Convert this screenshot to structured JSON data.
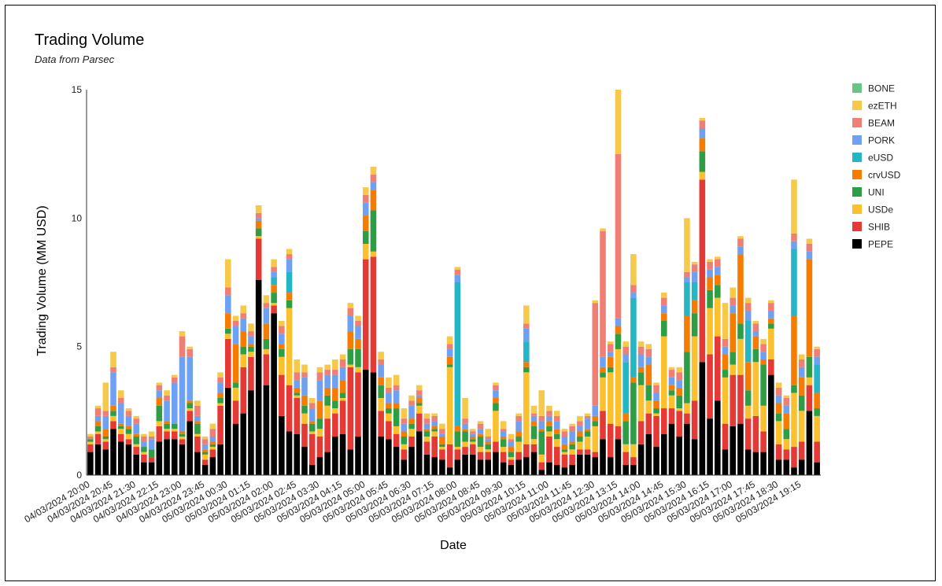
{
  "chart_data": {
    "type": "bar",
    "stacked": true,
    "title": "Trading Volume",
    "subtitle": "Data from Parsec",
    "xlabel": "Date",
    "ylabel": "Trading Volume (MM USD)",
    "ylim": [
      0,
      15
    ],
    "yticks": [
      0,
      5,
      10,
      15
    ],
    "grid": false,
    "legend_position": "right",
    "x_tick_labels": [
      "04/03/2024 20:00",
      "04/03/2024 20:45",
      "04/03/2024 21:30",
      "04/03/2024 22:15",
      "04/03/2024 23:00",
      "04/03/2024 23:45",
      "05/03/2024 00:30",
      "05/03/2024 01:15",
      "05/03/2024 02:00",
      "05/03/2024 02:45",
      "05/03/2024 03:30",
      "05/03/2024 04:15",
      "05/03/2024 05:00",
      "05/03/2024 05:45",
      "05/03/2024 06:30",
      "05/03/2024 07:15",
      "05/03/2024 08:00",
      "05/03/2024 08:45",
      "05/03/2024 09:30",
      "05/03/2024 10:15",
      "05/03/2024 11:00",
      "05/03/2024 11:45",
      "05/03/2024 12:30",
      "05/03/2024 13:15",
      "05/03/2024 14:00",
      "05/03/2024 14:45",
      "05/03/2024 15:30",
      "05/03/2024 16:15",
      "05/03/2024 17:00",
      "05/03/2024 17:45",
      "05/03/2024 18:30",
      "05/03/2024 19:15"
    ],
    "categories": [
      "04/03/2024 20:00",
      "04/03/2024 20:15",
      "04/03/2024 20:30",
      "04/03/2024 20:45",
      "04/03/2024 21:00",
      "04/03/2024 21:15",
      "04/03/2024 21:30",
      "04/03/2024 21:45",
      "04/03/2024 22:00",
      "04/03/2024 22:15",
      "04/03/2024 22:30",
      "04/03/2024 22:45",
      "04/03/2024 23:00",
      "04/03/2024 23:15",
      "04/03/2024 23:30",
      "04/03/2024 23:45",
      "05/03/2024 00:00",
      "05/03/2024 00:15",
      "05/03/2024 00:30",
      "05/03/2024 00:45",
      "05/03/2024 01:00",
      "05/03/2024 01:15",
      "05/03/2024 01:30",
      "05/03/2024 01:45",
      "05/03/2024 02:00",
      "05/03/2024 02:15",
      "05/03/2024 02:30",
      "05/03/2024 02:45",
      "05/03/2024 03:00",
      "05/03/2024 03:15",
      "05/03/2024 03:30",
      "05/03/2024 03:45",
      "05/03/2024 04:00",
      "05/03/2024 04:15",
      "05/03/2024 04:30",
      "05/03/2024 04:45",
      "05/03/2024 05:00",
      "05/03/2024 05:15",
      "05/03/2024 05:30",
      "05/03/2024 05:45",
      "05/03/2024 06:00",
      "05/03/2024 06:15",
      "05/03/2024 06:30",
      "05/03/2024 06:45",
      "05/03/2024 07:00",
      "05/03/2024 07:15",
      "05/03/2024 07:30",
      "05/03/2024 07:45",
      "05/03/2024 08:00",
      "05/03/2024 08:15",
      "05/03/2024 08:30",
      "05/03/2024 08:45",
      "05/03/2024 09:00",
      "05/03/2024 09:15",
      "05/03/2024 09:30",
      "05/03/2024 09:45",
      "05/03/2024 10:00",
      "05/03/2024 10:15",
      "05/03/2024 10:30",
      "05/03/2024 10:45",
      "05/03/2024 11:00",
      "05/03/2024 11:15",
      "05/03/2024 11:30",
      "05/03/2024 11:45",
      "05/03/2024 12:00",
      "05/03/2024 12:15",
      "05/03/2024 12:30",
      "05/03/2024 12:45",
      "05/03/2024 13:00",
      "05/03/2024 13:15",
      "05/03/2024 13:30",
      "05/03/2024 13:45",
      "05/03/2024 14:00",
      "05/03/2024 14:15",
      "05/03/2024 14:30",
      "05/03/2024 14:45",
      "05/03/2024 15:00",
      "05/03/2024 15:15",
      "05/03/2024 15:30",
      "05/03/2024 15:45",
      "05/03/2024 16:00",
      "05/03/2024 16:15",
      "05/03/2024 16:30",
      "05/03/2024 16:45",
      "05/03/2024 17:00",
      "05/03/2024 17:15",
      "05/03/2024 17:30",
      "05/03/2024 17:45",
      "05/03/2024 18:00",
      "05/03/2024 18:15",
      "05/03/2024 18:30",
      "05/03/2024 18:45",
      "05/03/2024 19:00",
      "05/03/2024 19:15",
      "05/03/2024 19:30",
      "05/03/2024 19:45"
    ],
    "series": [
      {
        "name": "PEPE",
        "color": "#000000",
        "values": [
          0.9,
          1.2,
          1.0,
          1.8,
          1.3,
          1.2,
          0.8,
          0.5,
          0.5,
          1.3,
          1.4,
          1.4,
          1.2,
          2.1,
          0.9,
          0.4,
          0.7,
          1.2,
          3.4,
          2.0,
          2.4,
          3.3,
          7.6,
          3.5,
          6.3,
          2.3,
          1.7,
          1.6,
          1.1,
          0.4,
          0.7,
          0.9,
          1.5,
          1.6,
          1.0,
          1.5,
          4.1,
          4.0,
          1.5,
          1.4,
          1.1,
          0.6,
          1.1,
          1.7,
          0.8,
          0.7,
          0.6,
          0.3,
          0.6,
          0.8,
          0.8,
          0.6,
          0.6,
          0.9,
          0.5,
          0.4,
          0.6,
          0.7,
          0.9,
          0.2,
          0.5,
          0.4,
          0.3,
          0.4,
          0.8,
          0.8,
          0.7,
          1.4,
          0.7,
          1.4,
          0.4,
          0.4,
          1.2,
          1.6,
          1.1,
          1.6,
          2.0,
          1.5,
          2.0,
          1.4,
          4.4,
          2.2,
          2.9,
          1.0,
          1.9,
          2.0,
          1.0,
          0.9,
          0.9,
          3.9,
          0.6,
          0.6,
          0.3,
          0.6,
          2.5,
          0.5
        ]
      },
      {
        "name": "SHIB",
        "color": "#e53935",
        "values": [
          0.3,
          0.4,
          0.3,
          0.3,
          0.3,
          0.2,
          0.3,
          0.3,
          0.2,
          0.6,
          0.3,
          0.3,
          0.2,
          0.4,
          0.6,
          0.2,
          0.3,
          1.5,
          1.9,
          0.9,
          1.8,
          1.3,
          1.6,
          1.2,
          0.3,
          1.6,
          1.8,
          1.4,
          0.9,
          1.2,
          0.8,
          1.3,
          0.9,
          1.3,
          3.2,
          2.5,
          4.3,
          4.5,
          1.0,
          0.7,
          0.5,
          0.4,
          0.4,
          0.7,
          0.5,
          0.8,
          0.4,
          0.9,
          0.4,
          0.3,
          0.4,
          0.3,
          0.3,
          0.4,
          0.4,
          0.2,
          0.3,
          0.5,
          0.3,
          0.3,
          1.0,
          0.7,
          0.5,
          0.4,
          0.2,
          0.2,
          0.2,
          1.1,
          1.3,
          0.5,
          0.5,
          0.3,
          0.9,
          0.8,
          1.2,
          1.0,
          0.6,
          1.0,
          0.4,
          1.5,
          7.1,
          2.5,
          2.5,
          1.0,
          2.0,
          1.9,
          1.2,
          1.4,
          0.8,
          0.6,
          0.6,
          0.4,
          0.8,
          0.7,
          1.0,
          0.8
        ]
      },
      {
        "name": "USDe",
        "color": "#fbc02d",
        "values": [
          0.1,
          0.1,
          0.1,
          0.2,
          0.2,
          0.2,
          0.1,
          0.1,
          0.0,
          0.2,
          0.1,
          0.1,
          0.1,
          0.1,
          0.1,
          0.2,
          0.1,
          0.1,
          0.2,
          0.5,
          0.5,
          0.2,
          0.1,
          0.2,
          0.1,
          0.7,
          3.0,
          0.1,
          0.4,
          0.1,
          0.3,
          0.5,
          0.2,
          0.1,
          0.1,
          0.2,
          0.6,
          0.2,
          0.5,
          0.3,
          0.3,
          0.2,
          0.3,
          0.3,
          0.2,
          0.2,
          0.1,
          3.0,
          0.1,
          0.2,
          0.1,
          0.2,
          0.1,
          1.2,
          0.2,
          0.1,
          0.4,
          2.8,
          0.2,
          0.3,
          0.2,
          0.3,
          0.1,
          0.2,
          0.3,
          0.5,
          1.0,
          1.3,
          2.0,
          3.0,
          0.3,
          0.5,
          1.4,
          0.5,
          0.1,
          2.8,
          0.5,
          0.1,
          0.4,
          2.5,
          0.3,
          1.8,
          1.5,
          1.8,
          0.4,
          1.4,
          0.5,
          2.1,
          1.0,
          1.2,
          0.9,
          0.4,
          2.1,
          1.2,
          0.3,
          1.0
        ]
      },
      {
        "name": "UNI",
        "color": "#2e9e44",
        "values": [
          0.1,
          0.2,
          0.1,
          0.2,
          0.1,
          0.2,
          0.3,
          0.2,
          0.3,
          0.6,
          0.2,
          0.2,
          0.1,
          0.2,
          0.4,
          0.1,
          0.1,
          0.2,
          0.2,
          0.2,
          0.3,
          0.2,
          0.3,
          0.4,
          0.4,
          0.3,
          0.3,
          0.1,
          0.3,
          0.3,
          0.4,
          0.4,
          0.3,
          0.2,
          0.6,
          0.7,
          0.5,
          1.6,
          0.5,
          0.2,
          0.7,
          0.3,
          0.2,
          0.1,
          0.2,
          0.1,
          0.1,
          0.1,
          0.6,
          0.4,
          0.1,
          0.4,
          0.2,
          0.3,
          0.3,
          0.2,
          0.2,
          0.2,
          0.5,
          0.9,
          0.2,
          0.2,
          0.1,
          0.2,
          0.2,
          0.2,
          0.2,
          0.2,
          0.2,
          0.6,
          0.9,
          2.4,
          0.5,
          0.6,
          0.2,
          0.6,
          0.2,
          0.5,
          2.0,
          0.9,
          0.8,
          0.7,
          0.5,
          0.3,
          0.5,
          0.6,
          0.6,
          0.5,
          1.6,
          0.2,
          0.3,
          0.4,
          0.3,
          0.6,
          0.8,
          0.3
        ]
      },
      {
        "name": "crvUSD",
        "color": "#f57c00",
        "values": [
          0.0,
          0.2,
          0.3,
          0.2,
          0.1,
          0.1,
          0.1,
          0.0,
          0.0,
          0.3,
          0.1,
          0.0,
          0.1,
          0.1,
          0.1,
          0.1,
          0.1,
          0.2,
          0.6,
          1.5,
          0.6,
          0.1,
          0.3,
          0.6,
          0.3,
          0.2,
          0.3,
          0.2,
          0.4,
          0.1,
          0.7,
          0.3,
          0.5,
          0.5,
          0.7,
          0.4,
          0.6,
          0.8,
          0.3,
          0.2,
          0.2,
          0.2,
          0.2,
          0.2,
          0.1,
          0.1,
          0.3,
          0.3,
          0.2,
          0.1,
          0.1,
          0.1,
          0.1,
          0.2,
          0.1,
          0.2,
          0.2,
          0.2,
          0.2,
          0.1,
          0.2,
          0.2,
          0.2,
          0.1,
          0.2,
          0.1,
          0.2,
          0.2,
          0.4,
          0.3,
          0.3,
          0.2,
          0.2,
          0.8,
          0.3,
          0.3,
          0.2,
          0.3,
          1.4,
          0.5,
          0.5,
          0.5,
          0.4,
          0.6,
          1.5,
          2.7,
          1.1,
          0.5,
          0.2,
          0.2,
          0.4,
          0.6,
          2.7,
          0.7,
          3.8,
          0.6
        ]
      },
      {
        "name": "eUSD",
        "color": "#26b5c4",
        "values": [
          0.0,
          0.0,
          0.0,
          0.0,
          0.0,
          0.0,
          0.0,
          0.0,
          0.0,
          0.0,
          0.0,
          0.0,
          0.0,
          0.0,
          0.0,
          0.0,
          0.0,
          0.0,
          0.0,
          0.0,
          0.0,
          0.0,
          0.0,
          0.0,
          0.3,
          0.0,
          0.8,
          0.0,
          0.0,
          0.0,
          0.0,
          0.0,
          0.0,
          0.0,
          0.0,
          0.0,
          0.0,
          0.0,
          0.0,
          0.0,
          0.0,
          0.0,
          0.0,
          0.0,
          0.0,
          0.0,
          0.0,
          0.0,
          5.6,
          0.0,
          0.0,
          0.0,
          0.0,
          0.0,
          0.0,
          0.0,
          0.0,
          0.8,
          0.0,
          0.0,
          0.0,
          0.0,
          0.0,
          0.0,
          0.0,
          0.0,
          0.0,
          0.0,
          0.0,
          0.0,
          2.0,
          3.1,
          0.0,
          0.0,
          0.0,
          0.0,
          0.0,
          0.0,
          1.3,
          0.7,
          0.0,
          0.0,
          0.0,
          0.0,
          0.0,
          0.0,
          1.6,
          0.0,
          0.0,
          0.0,
          0.0,
          0.0,
          2.6,
          0.0,
          0.0,
          1.1
        ]
      },
      {
        "name": "PORK",
        "color": "#6fa1f2",
        "values": [
          0.0,
          0.2,
          0.5,
          1.3,
          0.8,
          0.4,
          0.4,
          0.2,
          0.4,
          0.3,
          0.8,
          1.6,
          2.9,
          1.7,
          0.2,
          0.2,
          0.2,
          0.4,
          0.7,
          0.7,
          0.5,
          0.3,
          0.1,
          0.6,
          0.2,
          0.4,
          0.5,
          0.3,
          0.7,
          0.5,
          0.8,
          0.5,
          0.5,
          0.5,
          0.6,
          0.5,
          0.5,
          0.3,
          0.5,
          0.4,
          0.5,
          0.3,
          0.5,
          0.1,
          0.2,
          0.2,
          0.1,
          0.3,
          0.3,
          0.2,
          0.1,
          0.2,
          0.1,
          0.3,
          0.2,
          0.2,
          0.4,
          0.5,
          0.2,
          0.3,
          0.2,
          0.3,
          0.3,
          0.4,
          0.2,
          0.4,
          0.4,
          0.4,
          0.2,
          0.3,
          0.3,
          0.2,
          0.5,
          0.3,
          0.3,
          0.3,
          0.3,
          0.3,
          0.2,
          0.4,
          0.4,
          0.3,
          0.3,
          0.3,
          0.3,
          0.3,
          0.4,
          0.2,
          0.3,
          0.3,
          0.3,
          0.3,
          0.3,
          0.4,
          0.3,
          0.3
        ]
      },
      {
        "name": "BEAM",
        "color": "#ef7e74",
        "values": [
          0.1,
          0.3,
          0.2,
          0.2,
          0.2,
          0.2,
          0.2,
          0.2,
          0.1,
          0.2,
          0.2,
          0.2,
          0.8,
          0.3,
          0.4,
          0.2,
          0.3,
          0.2,
          0.3,
          0.2,
          0.2,
          0.2,
          0.2,
          0.2,
          0.2,
          0.3,
          0.2,
          0.3,
          0.2,
          0.2,
          0.3,
          0.2,
          0.2,
          0.3,
          0.3,
          0.2,
          0.3,
          0.3,
          0.2,
          0.2,
          0.2,
          0.2,
          0.2,
          0.2,
          0.2,
          0.2,
          0.2,
          0.2,
          0.2,
          0.2,
          0.1,
          0.2,
          0.1,
          0.2,
          0.1,
          0.1,
          0.2,
          0.2,
          0.1,
          0.2,
          0.2,
          0.2,
          0.2,
          0.2,
          0.2,
          0.1,
          4.0,
          4.9,
          0.3,
          6.4,
          0.3,
          0.3,
          0.3,
          0.3,
          0.3,
          0.3,
          0.3,
          0.3,
          0.2,
          0.3,
          0.3,
          0.3,
          0.3,
          0.3,
          0.3,
          0.3,
          0.3,
          0.3,
          0.3,
          0.3,
          0.3,
          0.3,
          0.3,
          0.3,
          0.3,
          0.3
        ]
      },
      {
        "name": "ezETH",
        "color": "#f6c94a",
        "values": [
          0.1,
          0.1,
          1.1,
          0.6,
          0.3,
          0.1,
          0.1,
          0.1,
          0.2,
          0.1,
          0.2,
          0.1,
          0.2,
          0.1,
          0.2,
          0.1,
          0.2,
          0.2,
          1.1,
          0.2,
          0.3,
          0.3,
          0.3,
          0.3,
          0.3,
          0.2,
          0.2,
          0.5,
          0.3,
          0.2,
          0.2,
          0.2,
          0.4,
          0.2,
          0.2,
          0.2,
          0.3,
          0.3,
          0.3,
          0.4,
          0.4,
          0.4,
          0.2,
          0.2,
          0.2,
          0.1,
          0.2,
          0.3,
          0.1,
          0.8,
          0.1,
          0.1,
          0.3,
          0.1,
          0.3,
          0.2,
          0.1,
          0.7,
          0.3,
          1.0,
          0.2,
          0.2,
          0.1,
          0.1,
          0.2,
          0.1,
          0.1,
          0.1,
          0.1,
          2.5,
          0.2,
          1.2,
          0.2,
          0.2,
          0.1,
          0.2,
          0.1,
          0.2,
          2.1,
          0.1,
          0.1,
          0.1,
          0.1,
          1.4,
          0.4,
          0.1,
          0.2,
          0.1,
          0.2,
          0.1,
          0.2,
          0.1,
          2.1,
          0.2,
          0.2,
          0.1
        ]
      },
      {
        "name": "BONE",
        "color": "#6cc387",
        "values": [
          0.0,
          0.0,
          0.0,
          0.0,
          0.0,
          0.0,
          0.0,
          0.0,
          0.0,
          0.0,
          0.0,
          0.0,
          0.0,
          0.0,
          0.0,
          0.0,
          0.0,
          0.0,
          0.0,
          0.0,
          0.0,
          0.0,
          0.0,
          0.0,
          0.0,
          0.0,
          0.0,
          0.0,
          0.0,
          0.0,
          0.0,
          0.0,
          0.0,
          0.0,
          0.0,
          0.0,
          0.0,
          0.0,
          0.0,
          0.0,
          0.0,
          0.0,
          0.0,
          0.0,
          0.0,
          0.0,
          0.0,
          0.0,
          0.0,
          0.0,
          0.0,
          0.0,
          0.0,
          0.0,
          0.0,
          0.0,
          0.0,
          0.0,
          0.0,
          0.0,
          0.0,
          0.0,
          0.0,
          0.0,
          0.0,
          0.0,
          0.0,
          0.0,
          0.0,
          0.0,
          0.0,
          0.0,
          0.0,
          0.0,
          0.0,
          0.0,
          0.0,
          0.0,
          0.0,
          0.0,
          0.0,
          0.0,
          0.0,
          0.0,
          0.0,
          0.0,
          0.0,
          0.0,
          0.0,
          0.0,
          0.0,
          0.0,
          0.0,
          0.0,
          0.0,
          0.0
        ]
      }
    ],
    "legend_order": [
      "BONE",
      "ezETH",
      "BEAM",
      "PORK",
      "eUSD",
      "crvUSD",
      "UNI",
      "USDe",
      "SHIB",
      "PEPE"
    ]
  }
}
